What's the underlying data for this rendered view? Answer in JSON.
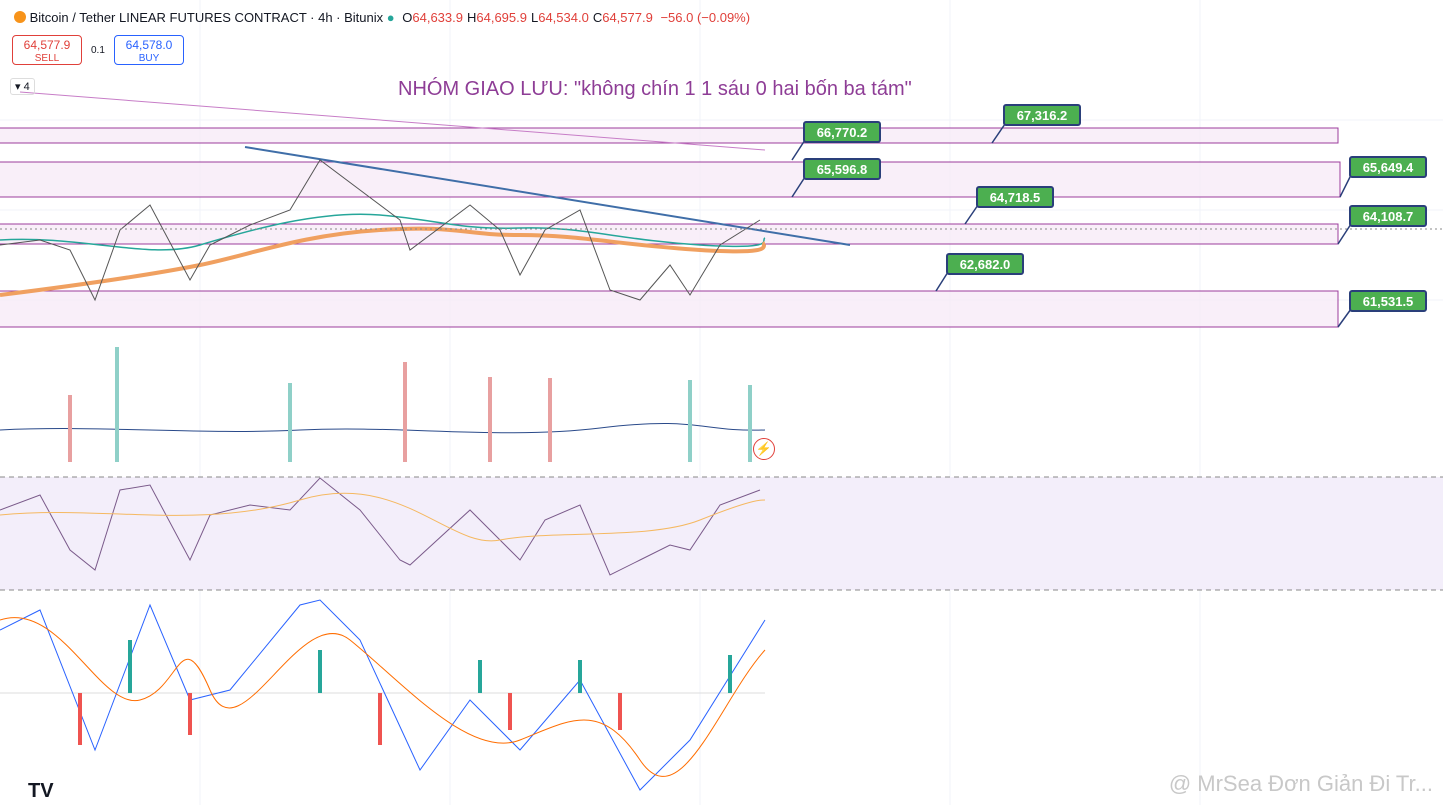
{
  "header": {
    "title": "Bitcoin / Tether LINEAR FUTURES CONTRACT · 4h · Bitunix",
    "ohlc": [
      {
        "key": "O",
        "value": "64,633.9"
      },
      {
        "key": "H",
        "value": "64,695.9"
      },
      {
        "key": "L",
        "value": "64,534.0"
      },
      {
        "key": "C",
        "value": "64,577.9"
      }
    ],
    "change": "−56.0 (−0.09%)"
  },
  "trade": {
    "sell_price": "64,577.9",
    "sell_label": "SELL",
    "spread": "0.1",
    "buy_price": "64,578.0",
    "buy_label": "BUY"
  },
  "indicator_count": "4",
  "annotation": "NHÓM GIAO LƯU: \"không chín 1 1 sáu 0 hai bốn ba tám\"",
  "price_labels": [
    "66,770.2",
    "67,316.2",
    "65,596.8",
    "65,649.4",
    "64,718.5",
    "64,108.7",
    "62,682.0",
    "61,531.5"
  ],
  "watermark": "@ MrSea Đơn Giản Đi Tr..."
}
